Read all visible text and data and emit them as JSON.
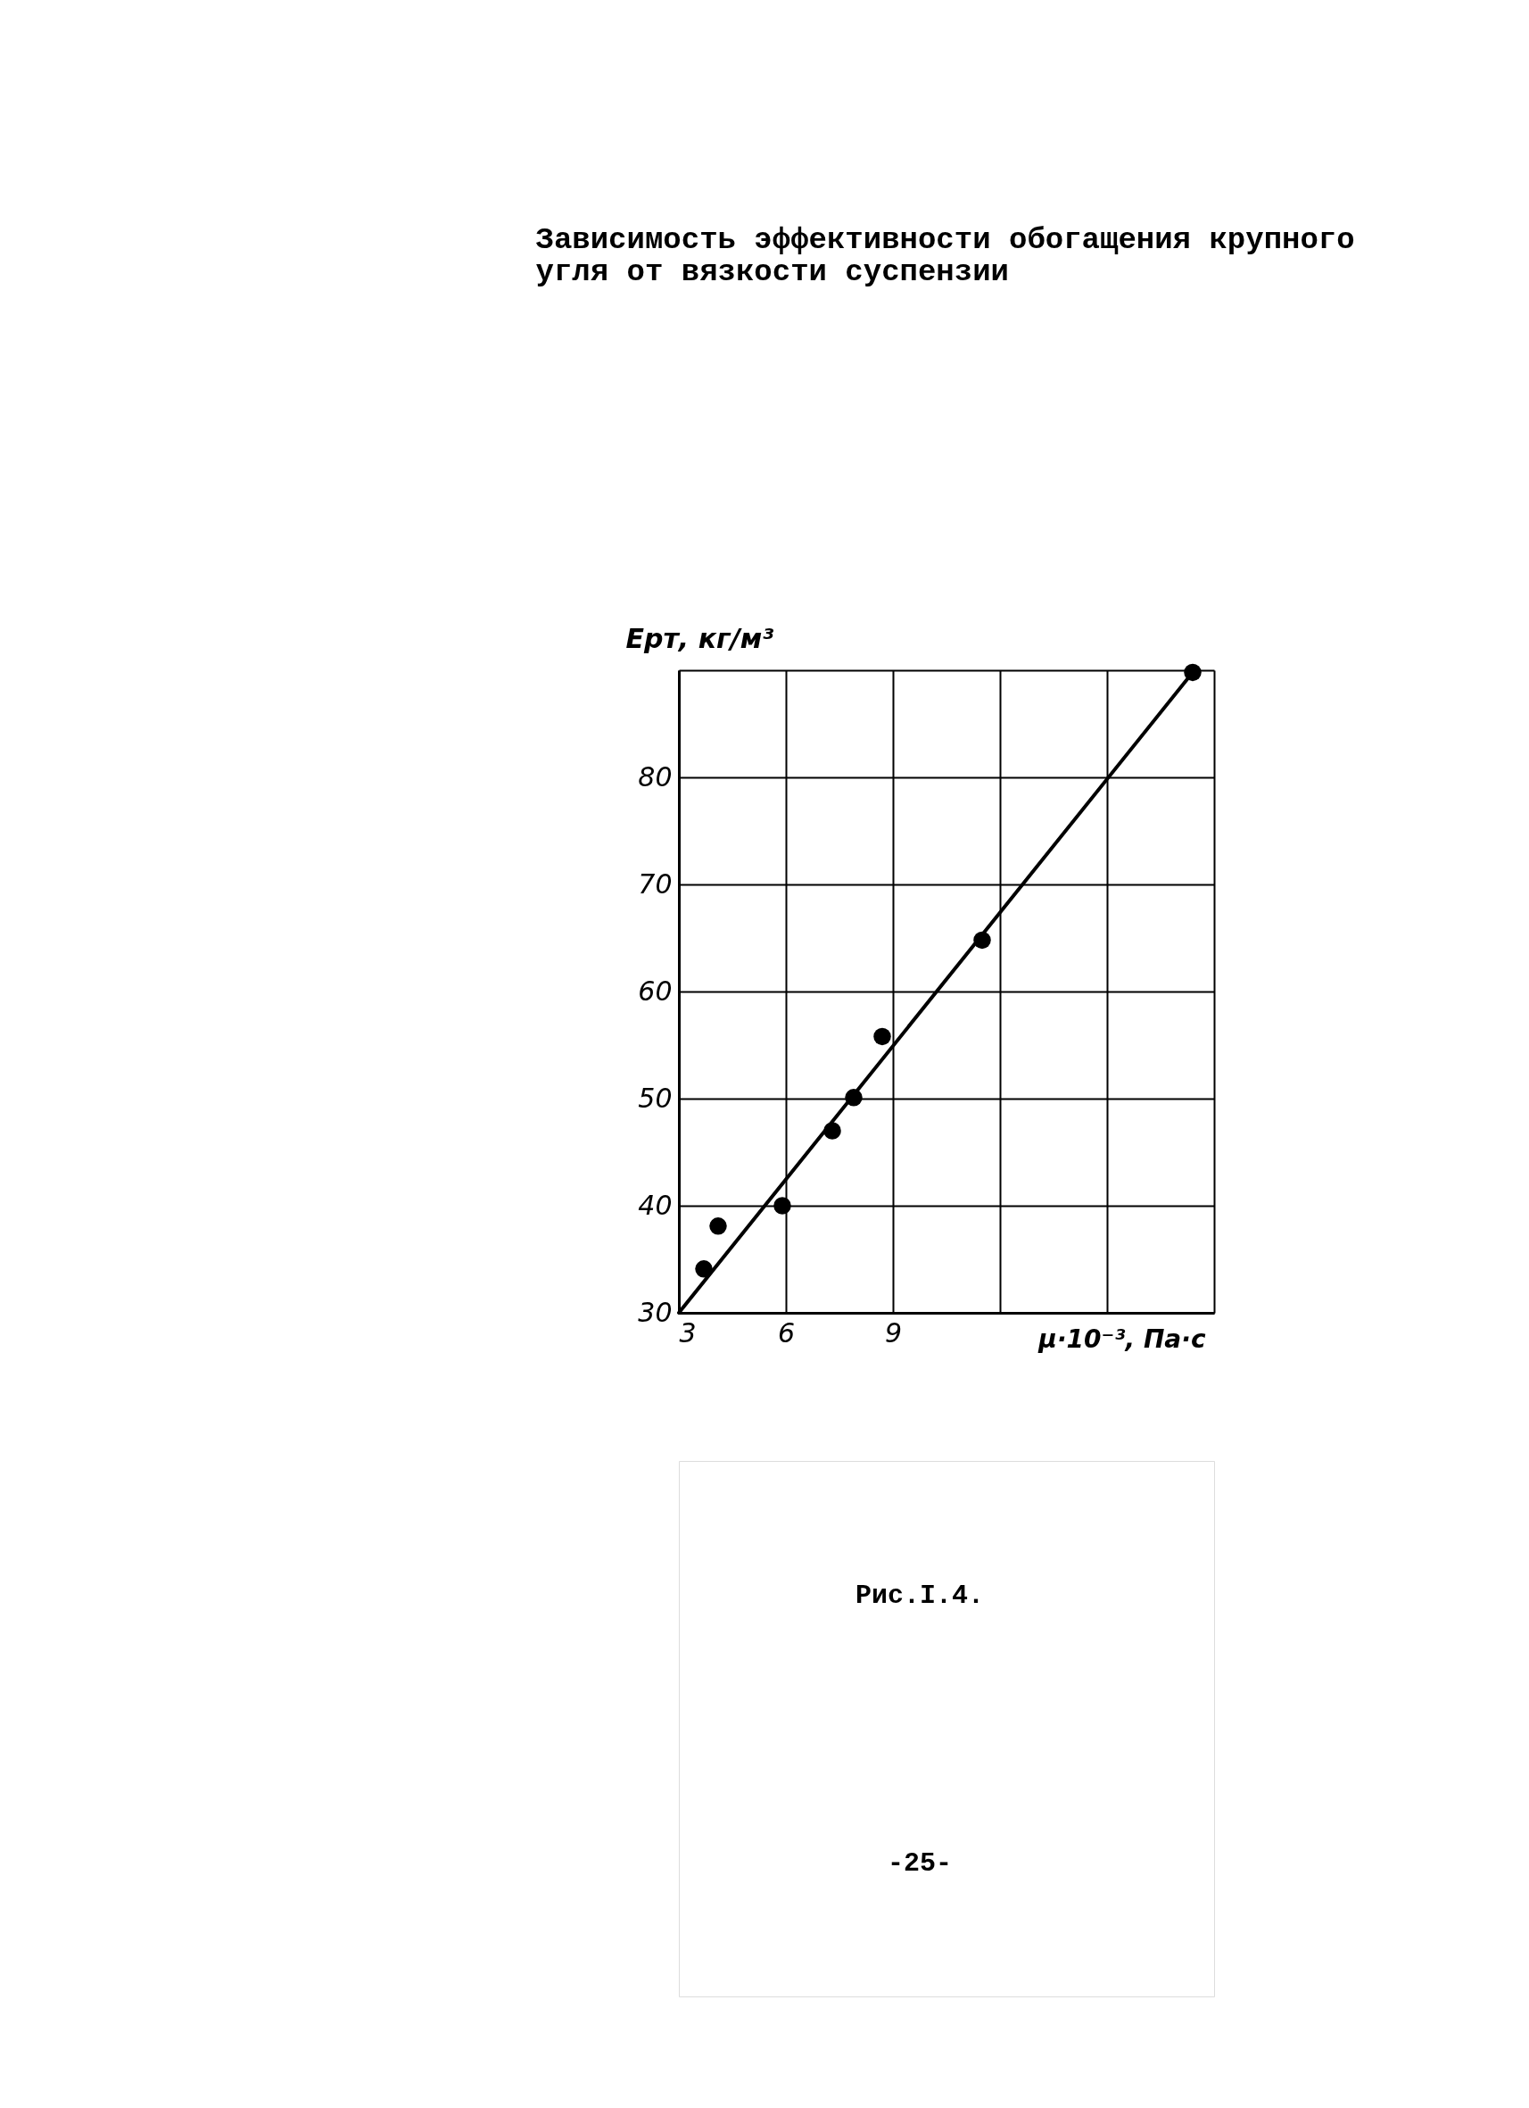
{
  "chart_data": {
    "type": "scatter",
    "title": "Зависимость эффективности обогащения крупного\nугля от вязкости суспензии",
    "xlabel": "μ·10⁻³, Па·с",
    "ylabel": "Eрт, кг/м³",
    "xlim": [
      3,
      18
    ],
    "ylim": [
      30,
      90
    ],
    "xticks": [
      3,
      6,
      9,
      {
        "value": 12,
        "label": null
      },
      {
        "value": 15,
        "label": null
      },
      {
        "value": 18,
        "label": null
      }
    ],
    "yticks": [
      30,
      40,
      50,
      60,
      70,
      80,
      {
        "value": 90,
        "label": null
      }
    ],
    "grid": true,
    "series": [
      {
        "marker": "circle",
        "color": "#000000",
        "x": [
          3.7,
          4.1,
          5.9,
          7.3,
          7.9,
          8.7,
          11.5,
          17.4
        ],
        "values": [
          34.1,
          38.1,
          40.0,
          47.0,
          50.1,
          55.8,
          64.8,
          89.8
        ]
      },
      {
        "type": "line",
        "line_style": "solid",
        "color": "#000000",
        "x": [
          3,
          17.4
        ],
        "values": [
          30,
          89.8
        ]
      }
    ],
    "annotations": [
      "Рис.I.4.",
      "-25-"
    ]
  }
}
